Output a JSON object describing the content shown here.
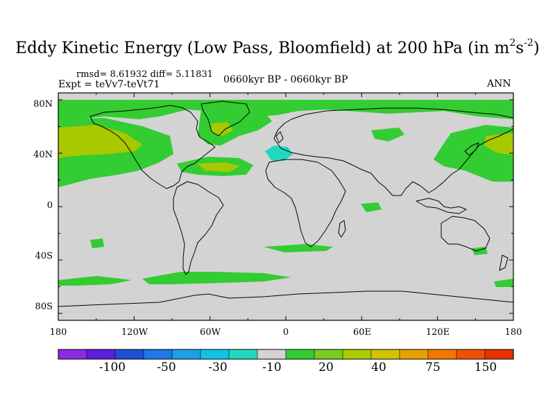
{
  "title": {
    "main": "Eddy Kinetic Energy (Low Pass, Bloomfield) at 200 hPa (in m",
    "unit_m_exp": "2",
    "unit_s": "s",
    "unit_s_exp": "-2",
    "close": ")"
  },
  "stats": {
    "rmsd_label": "rmsd=",
    "rmsd": "8.61932",
    "diff_label": "diff=",
    "diff": "5.11831"
  },
  "experiment": "Expt = teVv7-teVt71",
  "period": "0660kyr BP - 0660kyr BP",
  "season": "ANN",
  "map": {
    "background_color": "#d3d3d3",
    "lat_ticks": [
      "80N",
      "40N",
      "0",
      "40S",
      "80S"
    ],
    "lon_ticks": [
      "180",
      "120W",
      "60W",
      "0",
      "60E",
      "120E",
      "180"
    ]
  },
  "colorbar": {
    "colors": [
      "#8a2be2",
      "#5a1fd6",
      "#1e4fd8",
      "#1e78e6",
      "#1ea0e6",
      "#12c2e6",
      "#20d8c0",
      "#d3d3d3",
      "#33cc33",
      "#7acc1e",
      "#aacc00",
      "#d4c200",
      "#e8a000",
      "#f07800",
      "#f05000",
      "#e63200"
    ],
    "labels": [
      "-100",
      "-50",
      "-30",
      "-10",
      "20",
      "40",
      "75",
      "150"
    ]
  }
}
